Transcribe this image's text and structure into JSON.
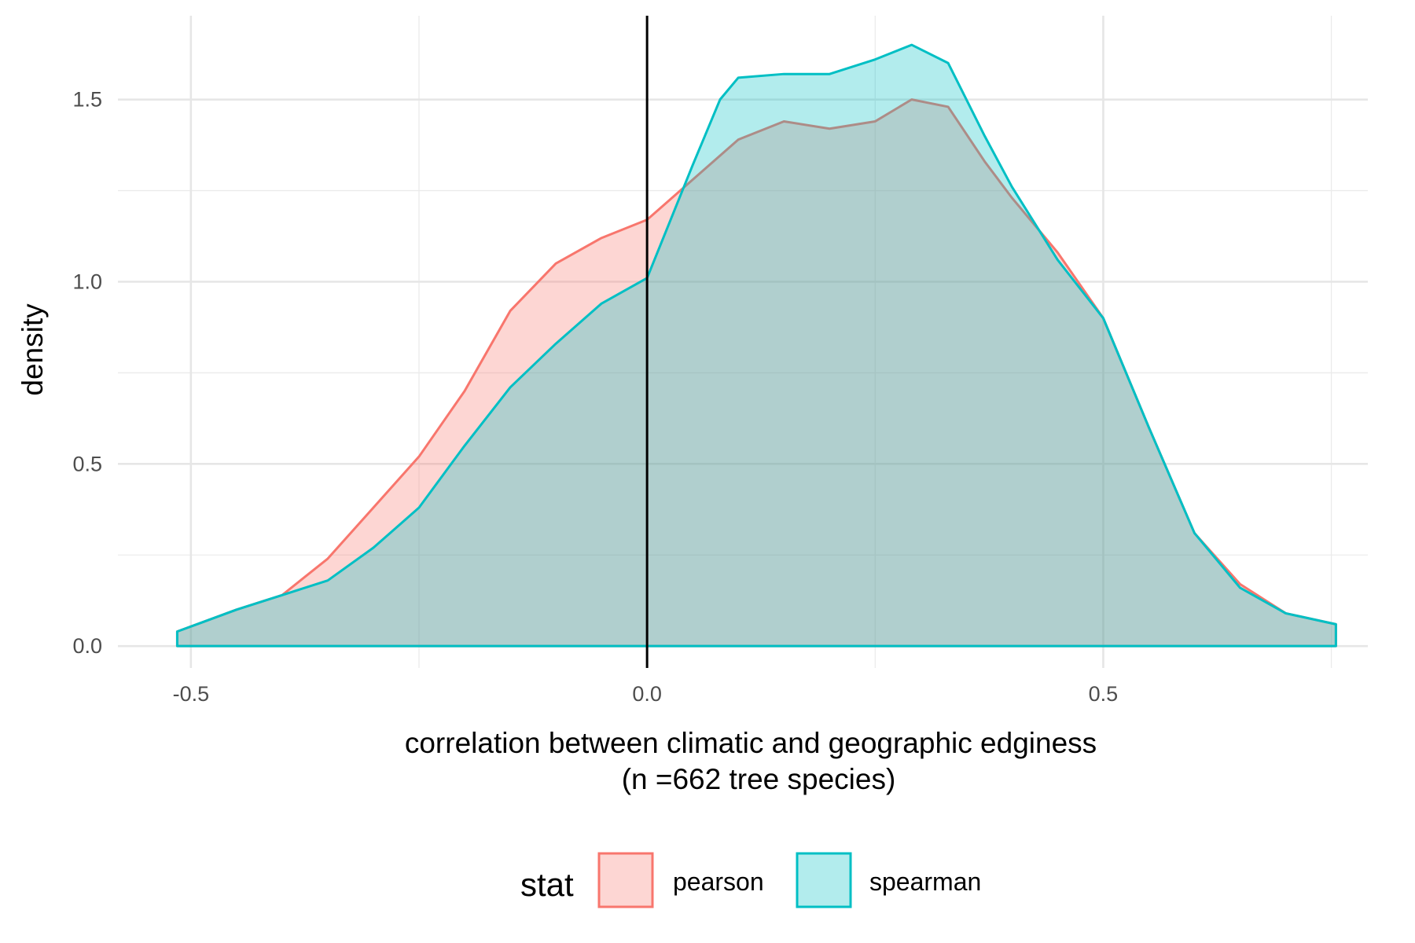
{
  "chart_data": {
    "type": "area",
    "title": "",
    "xlabel": "correlation between climatic and geographic edginess",
    "xlabel_line2": "(n =662 tree species)",
    "ylabel": "density",
    "xlim": [
      -0.58,
      0.79
    ],
    "ylim": [
      -0.06,
      1.73
    ],
    "x_ticks": [
      -0.5,
      0.0,
      0.5
    ],
    "x_tick_labels": [
      "-0.5",
      "0.0",
      "0.5"
    ],
    "y_ticks": [
      0.0,
      0.5,
      1.0,
      1.5
    ],
    "y_tick_labels": [
      "0.0",
      "0.5",
      "1.0",
      "1.5"
    ],
    "reference_line_x": 0.0,
    "grid": true,
    "legend": {
      "title": "stat",
      "position": "bottom"
    },
    "series": [
      {
        "name": "pearson",
        "line_color": "#F8766D",
        "fill_color": "#F8766D",
        "x": [
          -0.515,
          -0.45,
          -0.4,
          -0.35,
          -0.3,
          -0.25,
          -0.2,
          -0.15,
          -0.1,
          -0.05,
          0.0,
          0.05,
          0.1,
          0.15,
          0.2,
          0.25,
          0.29,
          0.33,
          0.37,
          0.4,
          0.45,
          0.5,
          0.55,
          0.6,
          0.65,
          0.7,
          0.755
        ],
        "y": [
          0.04,
          0.1,
          0.14,
          0.24,
          0.38,
          0.52,
          0.7,
          0.92,
          1.05,
          1.12,
          1.17,
          1.28,
          1.39,
          1.44,
          1.42,
          1.44,
          1.5,
          1.48,
          1.33,
          1.23,
          1.08,
          0.9,
          0.6,
          0.31,
          0.17,
          0.09,
          0.06
        ]
      },
      {
        "name": "spearman",
        "line_color": "#00BFC4",
        "fill_color": "#00BFC4",
        "x": [
          -0.515,
          -0.45,
          -0.4,
          -0.35,
          -0.3,
          -0.25,
          -0.2,
          -0.15,
          -0.1,
          -0.05,
          0.0,
          0.05,
          0.08,
          0.1,
          0.15,
          0.2,
          0.25,
          0.29,
          0.33,
          0.37,
          0.4,
          0.45,
          0.5,
          0.55,
          0.6,
          0.65,
          0.7,
          0.755
        ],
        "y": [
          0.04,
          0.1,
          0.14,
          0.18,
          0.27,
          0.38,
          0.55,
          0.71,
          0.83,
          0.94,
          1.01,
          1.32,
          1.5,
          1.56,
          1.57,
          1.57,
          1.61,
          1.65,
          1.6,
          1.4,
          1.26,
          1.06,
          0.9,
          0.6,
          0.31,
          0.16,
          0.09,
          0.06
        ]
      }
    ]
  }
}
